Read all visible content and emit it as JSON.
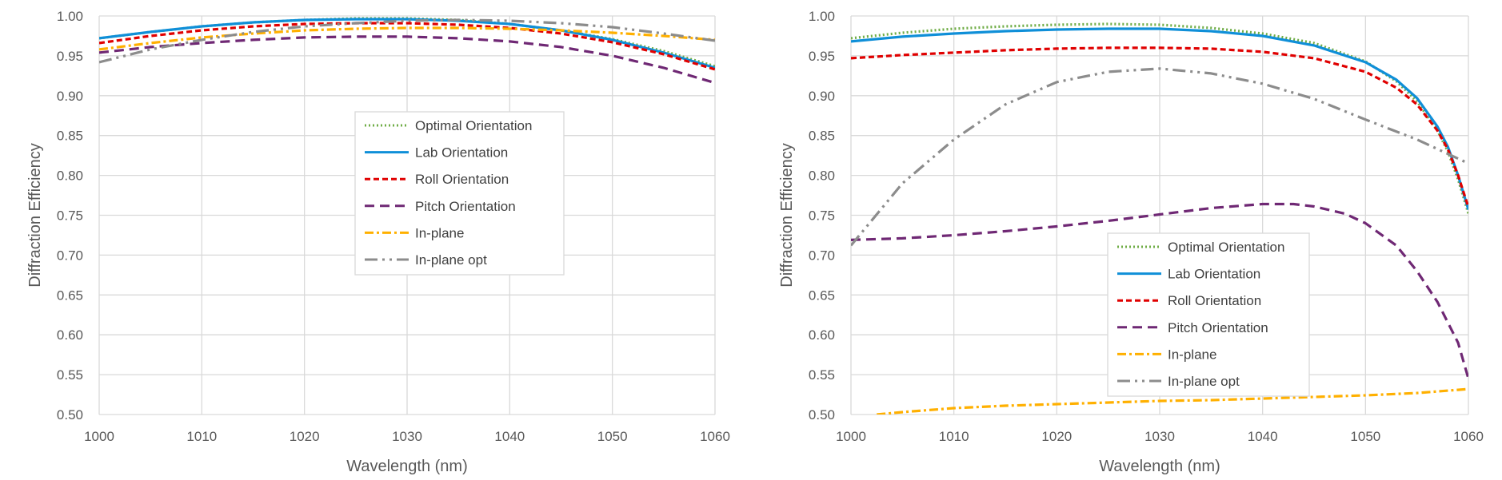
{
  "chart_data": [
    {
      "type": "line",
      "title": "",
      "xlabel": "Wavelength (nm)",
      "ylabel": "Diffraction Efficiency",
      "xlim": [
        1000,
        1060
      ],
      "ylim": [
        0.5,
        1.0
      ],
      "x_ticks": [
        "1000",
        "1010",
        "1020",
        "1030",
        "1040",
        "1050",
        "1060"
      ],
      "y_ticks": [
        "0.50",
        "0.55",
        "0.60",
        "0.65",
        "0.70",
        "0.75",
        "0.80",
        "0.85",
        "0.90",
        "0.95",
        "1.00"
      ],
      "grid": true,
      "legend_position": "center",
      "x": [
        1000,
        1005,
        1010,
        1015,
        1020,
        1025,
        1030,
        1035,
        1040,
        1045,
        1050,
        1055,
        1060
      ],
      "series": [
        {
          "name": "Optimal Orientation",
          "color": "#70AD47",
          "dash": "dotted",
          "values": [
            0.972,
            0.98,
            0.987,
            0.992,
            0.995,
            0.997,
            0.997,
            0.995,
            0.99,
            0.982,
            0.971,
            0.956,
            0.937
          ]
        },
        {
          "name": "Lab Orientation",
          "color": "#0F8FD8",
          "dash": "solid",
          "values": [
            0.972,
            0.98,
            0.987,
            0.992,
            0.995,
            0.996,
            0.996,
            0.994,
            0.99,
            0.982,
            0.97,
            0.954,
            0.935
          ]
        },
        {
          "name": "Roll Orientation",
          "color": "#E00000",
          "dash": "dash",
          "values": [
            0.966,
            0.975,
            0.982,
            0.987,
            0.99,
            0.991,
            0.991,
            0.989,
            0.985,
            0.978,
            0.967,
            0.952,
            0.933
          ]
        },
        {
          "name": "Pitch Orientation",
          "color": "#6F2874",
          "dash": "longdash",
          "values": [
            0.954,
            0.961,
            0.966,
            0.97,
            0.973,
            0.974,
            0.974,
            0.972,
            0.968,
            0.961,
            0.95,
            0.935,
            0.916
          ]
        },
        {
          "name": "In-plane",
          "color": "#FFB000",
          "dash": "dashdot",
          "values": [
            0.958,
            0.966,
            0.973,
            0.978,
            0.982,
            0.984,
            0.985,
            0.985,
            0.984,
            0.982,
            0.979,
            0.975,
            0.97
          ]
        },
        {
          "name": "In-plane opt",
          "color": "#8C8C8C",
          "dash": "longdashdotdot",
          "values": [
            0.942,
            0.958,
            0.97,
            0.98,
            0.987,
            0.991,
            0.994,
            0.995,
            0.994,
            0.991,
            0.986,
            0.978,
            0.969
          ]
        }
      ]
    },
    {
      "type": "line",
      "title": "",
      "xlabel": "Wavelength (nm)",
      "ylabel": "Diffraction Efficiency",
      "xlim": [
        1000,
        1060
      ],
      "ylim": [
        0.5,
        1.0
      ],
      "x_ticks": [
        "1000",
        "1010",
        "1020",
        "1030",
        "1040",
        "1050",
        "1060"
      ],
      "y_ticks": [
        "0.50",
        "0.55",
        "0.60",
        "0.65",
        "0.70",
        "0.75",
        "0.80",
        "0.85",
        "0.90",
        "0.95",
        "1.00"
      ],
      "grid": true,
      "legend_position": "bottom-center",
      "series": [
        {
          "name": "Optimal Orientation",
          "color": "#70AD47",
          "dash": "dotted",
          "x": [
            1000,
            1005,
            1010,
            1015,
            1020,
            1025,
            1030,
            1035,
            1040,
            1045,
            1050,
            1053,
            1055,
            1057,
            1058,
            1059,
            1060
          ],
          "values": [
            0.972,
            0.979,
            0.984,
            0.987,
            0.989,
            0.99,
            0.989,
            0.985,
            0.978,
            0.966,
            0.943,
            0.918,
            0.893,
            0.856,
            0.83,
            0.795,
            0.752
          ]
        },
        {
          "name": "Lab Orientation",
          "color": "#0F8FD8",
          "dash": "solid",
          "x": [
            1000,
            1005,
            1010,
            1015,
            1020,
            1025,
            1030,
            1035,
            1040,
            1045,
            1050,
            1053,
            1055,
            1057,
            1058,
            1059,
            1060
          ],
          "values": [
            0.968,
            0.974,
            0.978,
            0.981,
            0.983,
            0.984,
            0.984,
            0.981,
            0.975,
            0.963,
            0.942,
            0.92,
            0.897,
            0.861,
            0.836,
            0.8,
            0.757
          ]
        },
        {
          "name": "Roll Orientation",
          "color": "#E00000",
          "dash": "dash",
          "x": [
            1000,
            1005,
            1010,
            1015,
            1020,
            1025,
            1030,
            1035,
            1040,
            1045,
            1050,
            1053,
            1055,
            1057,
            1058,
            1059,
            1060
          ],
          "values": [
            0.947,
            0.951,
            0.954,
            0.957,
            0.959,
            0.96,
            0.96,
            0.959,
            0.955,
            0.947,
            0.93,
            0.91,
            0.889,
            0.856,
            0.833,
            0.8,
            0.76
          ]
        },
        {
          "name": "Pitch Orientation",
          "color": "#6F2874",
          "dash": "longdash",
          "x": [
            1000,
            1005,
            1010,
            1015,
            1020,
            1025,
            1030,
            1035,
            1040,
            1043,
            1045,
            1048,
            1050,
            1053,
            1055,
            1057,
            1059,
            1060
          ],
          "values": [
            0.719,
            0.721,
            0.725,
            0.73,
            0.736,
            0.743,
            0.751,
            0.759,
            0.764,
            0.764,
            0.761,
            0.752,
            0.74,
            0.712,
            0.68,
            0.641,
            0.59,
            0.545
          ]
        },
        {
          "name": "In-plane",
          "color": "#FFB000",
          "dash": "dashdot",
          "x": [
            1002.5,
            1005,
            1010,
            1015,
            1020,
            1025,
            1030,
            1035,
            1040,
            1045,
            1050,
            1055,
            1060
          ],
          "values": [
            0.5,
            0.503,
            0.508,
            0.511,
            0.513,
            0.515,
            0.517,
            0.518,
            0.52,
            0.522,
            0.524,
            0.527,
            0.532
          ]
        },
        {
          "name": "In-plane opt",
          "color": "#8C8C8C",
          "dash": "longdashdotdot",
          "x": [
            1000,
            1005,
            1010,
            1015,
            1020,
            1025,
            1030,
            1035,
            1040,
            1045,
            1050,
            1055,
            1060
          ],
          "values": [
            0.712,
            0.79,
            0.845,
            0.889,
            0.917,
            0.93,
            0.934,
            0.928,
            0.915,
            0.896,
            0.87,
            0.845,
            0.815
          ]
        }
      ]
    }
  ]
}
